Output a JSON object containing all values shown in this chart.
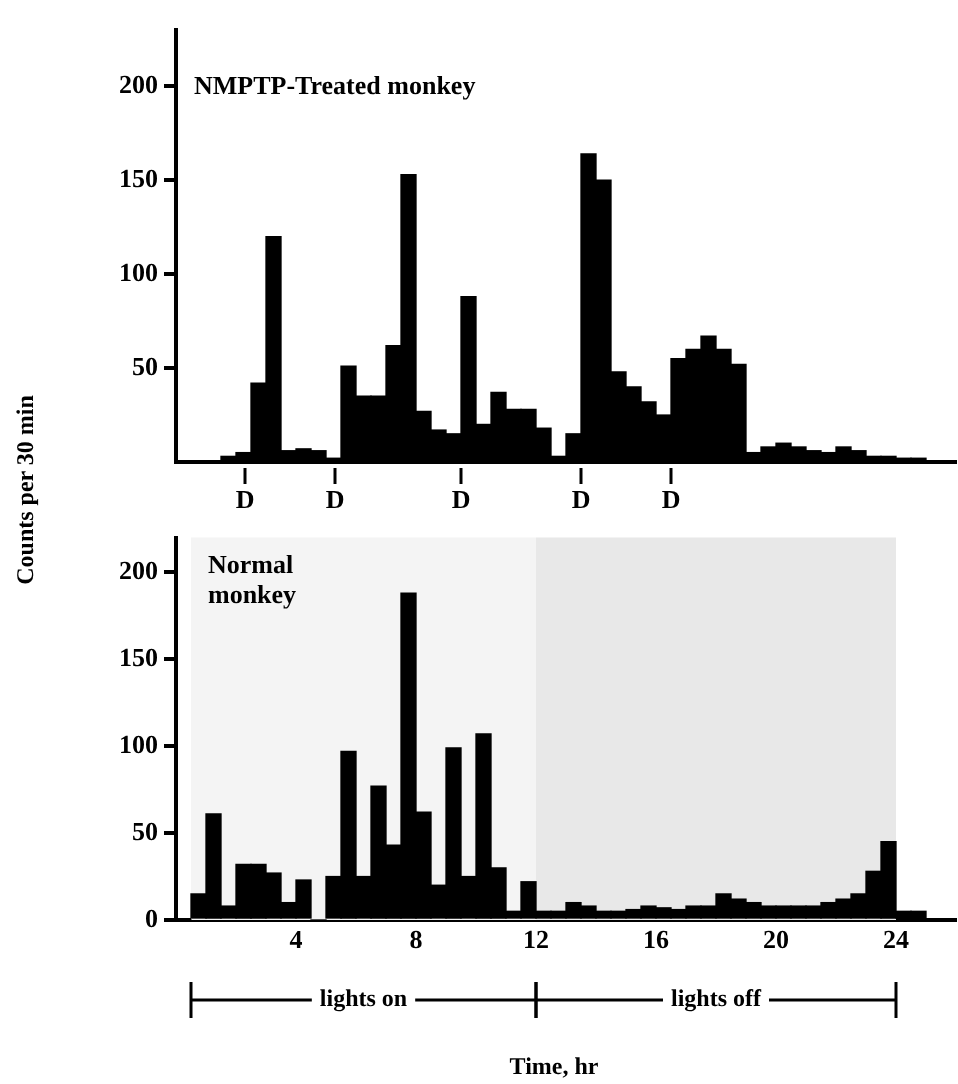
{
  "chart_data": [
    {
      "type": "histogram",
      "title": "NMPTP-Treated monkey",
      "ylabel": "Counts per 30 min",
      "color": "#000000",
      "bins": [
        0,
        0.5,
        1,
        1.5,
        2,
        2.5,
        3,
        3.5,
        4,
        4.5,
        5,
        5.5,
        6,
        6.5,
        7,
        7.5,
        8,
        8.5,
        9,
        9.5,
        10,
        10.5,
        11,
        11.5,
        12,
        12.5,
        13,
        13.5,
        14,
        14.5,
        15,
        15.5,
        16,
        16.5,
        17,
        17.5,
        18,
        18.5,
        19,
        19.5,
        20,
        20.5,
        21,
        21.5,
        22,
        22.5,
        23,
        23.5,
        24,
        24.5,
        25
      ],
      "values": [
        0,
        0,
        0,
        3,
        5,
        42,
        120,
        6,
        7,
        6,
        2,
        51,
        35,
        35,
        62,
        153,
        27,
        17,
        15,
        88,
        20,
        37,
        28,
        28,
        18,
        3,
        15,
        164,
        150,
        48,
        40,
        32,
        25,
        55,
        60,
        67,
        60,
        52,
        5,
        8,
        10,
        8,
        6,
        5,
        8,
        6,
        3,
        3,
        2,
        2
      ],
      "xlim": [
        0,
        26
      ],
      "ylim": [
        0,
        230
      ],
      "yticks": [
        50,
        100,
        150,
        200
      ],
      "tick_labels": "y",
      "annotations": [
        {
          "text": "D",
          "x": 2.3,
          "y": 0
        },
        {
          "text": "D",
          "x": 5.3,
          "y": 0
        },
        {
          "text": "D",
          "x": 9.5,
          "y": 0
        },
        {
          "text": "D",
          "x": 13.5,
          "y": 0
        },
        {
          "text": "D",
          "x": 16.5,
          "y": 0
        }
      ]
    },
    {
      "type": "histogram",
      "title": "Normal monkey",
      "xlabel": "Time, hr",
      "color": "#000000",
      "bins": [
        0,
        0.5,
        1,
        1.5,
        2,
        2.5,
        3,
        3.5,
        4,
        4.5,
        5,
        5.5,
        6,
        6.5,
        7,
        7.5,
        8,
        8.5,
        9,
        9.5,
        10,
        10.5,
        11,
        11.5,
        12,
        12.5,
        13,
        13.5,
        14,
        14.5,
        15,
        15.5,
        16,
        16.5,
        17,
        17.5,
        18,
        18.5,
        19,
        19.5,
        20,
        20.5,
        21,
        21.5,
        22,
        22.5,
        23,
        23.5,
        24,
        24.5,
        25
      ],
      "values": [
        0,
        15,
        61,
        8,
        32,
        32,
        27,
        10,
        23,
        0,
        25,
        97,
        25,
        77,
        43,
        188,
        62,
        20,
        99,
        25,
        107,
        30,
        5,
        22,
        5,
        5,
        10,
        8,
        5,
        5,
        6,
        8,
        7,
        6,
        8,
        8,
        15,
        12,
        10,
        8,
        8,
        8,
        8,
        10,
        12,
        15,
        28,
        45,
        5,
        5
      ],
      "xlim": [
        0,
        26
      ],
      "ylim": [
        0,
        220
      ],
      "xticks": [
        4,
        8,
        12,
        16,
        20,
        24
      ],
      "yticks": [
        0,
        50,
        100,
        150,
        200
      ],
      "bands": [
        {
          "axis": "x",
          "from": 0.5,
          "to": 12,
          "label": "lights on",
          "color": "#f4f4f4"
        },
        {
          "axis": "x",
          "from": 12,
          "to": 24,
          "label": "lights off",
          "color": "#e8e8e8"
        }
      ]
    }
  ]
}
